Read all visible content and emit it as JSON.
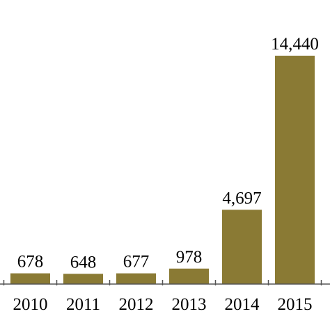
{
  "chart_data": {
    "type": "bar",
    "categories": [
      "2010",
      "2011",
      "2012",
      "2013",
      "2014",
      "2015"
    ],
    "values": [
      678,
      648,
      677,
      978,
      4697,
      14440
    ],
    "value_labels": [
      "678",
      "648",
      "677",
      "978",
      "4,697",
      "14,440"
    ],
    "title": "",
    "xlabel": "",
    "ylabel": "",
    "ylim": [
      0,
      14440
    ],
    "grid": false,
    "legend": "none",
    "bar_color": "#8a7a34",
    "axis_color": "#555555"
  }
}
